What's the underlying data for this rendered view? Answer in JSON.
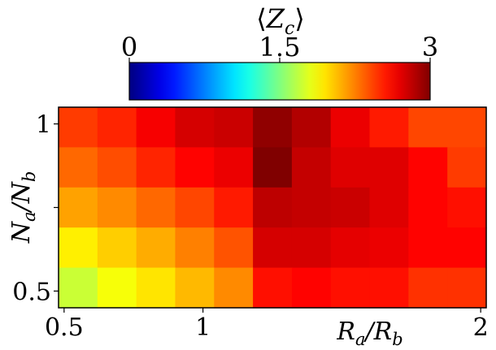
{
  "chart_data": {
    "type": "heatmap",
    "colorbar": {
      "title_base": "⟨Z",
      "title_sub": "c",
      "title_close": "⟩",
      "min": 0,
      "max": 3,
      "ticks": [
        {
          "value": 0,
          "label": "0"
        },
        {
          "value": 1.5,
          "label": "1.5"
        },
        {
          "value": 3,
          "label": "3"
        }
      ],
      "colormap": "jet",
      "placement": "top"
    },
    "xlabel": {
      "base": "R",
      "sub1": "a",
      "slash": "/R",
      "sub2": "b"
    },
    "ylabel": {
      "base": "N",
      "sub1": "a",
      "slash": "/N",
      "sub2": "b"
    },
    "x_ticks": [
      {
        "value": 0.5,
        "label": "0.5"
      },
      {
        "value": 1,
        "label": "1"
      },
      {
        "value": 2,
        "label": "2"
      }
    ],
    "y_ticks": [
      {
        "value": 1.0,
        "label": "1"
      },
      {
        "value": 0.75,
        "label": ""
      },
      {
        "value": 0.5,
        "label": "0.5"
      }
    ],
    "x_range": [
      0.48,
      2.02
    ],
    "y_range": [
      0.45,
      1.05
    ],
    "x_cells": [
      0.5,
      0.6,
      0.7,
      0.8,
      0.9,
      1.0,
      1.1,
      1.3,
      1.5,
      1.75,
      2.0
    ],
    "y_cells": [
      1.0,
      0.875,
      0.75,
      0.625,
      0.5
    ],
    "values": [
      [
        2.45,
        2.52,
        2.65,
        2.75,
        2.78,
        2.95,
        2.85,
        2.68,
        2.55,
        2.42,
        2.42
      ],
      [
        2.32,
        2.4,
        2.52,
        2.62,
        2.68,
        3.0,
        2.8,
        2.72,
        2.72,
        2.62,
        2.45
      ],
      [
        2.15,
        2.22,
        2.32,
        2.42,
        2.55,
        2.82,
        2.8,
        2.78,
        2.72,
        2.62,
        2.58
      ],
      [
        1.92,
        2.02,
        2.12,
        2.25,
        2.38,
        2.75,
        2.75,
        2.7,
        2.68,
        2.62,
        2.62
      ],
      [
        1.72,
        1.85,
        1.95,
        2.08,
        2.22,
        2.58,
        2.62,
        2.58,
        2.58,
        2.48,
        2.48
      ]
    ]
  }
}
